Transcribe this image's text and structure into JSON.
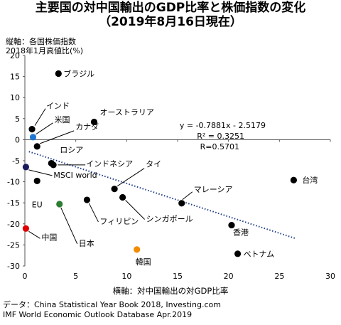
{
  "chart_data": {
    "type": "scatter",
    "title": "主要国の対中国輸出のGDP比率と株価指数の変化",
    "subtitle": "（2019年8月16日現在）",
    "ylabel_line1": "縦軸：各国株価指数",
    "ylabel_line2": "2018年1月高値比(%)",
    "xlabel": "横軸：対中国輸出の対GDP比率",
    "xlim": [
      0,
      30
    ],
    "ylim": [
      -30,
      20
    ],
    "xticks": [
      0,
      5,
      10,
      15,
      20,
      25,
      30
    ],
    "yticks": [
      20,
      15,
      10,
      5,
      0,
      -5,
      -10,
      -15,
      -20,
      -25,
      -30
    ],
    "grid": false,
    "trendline": {
      "equation": "y = -0.7881x - 2.5179",
      "r2": "R² = 0.3251",
      "r": "R=0.5701",
      "slope": -0.7881,
      "intercept": -2.5179,
      "x_range": [
        0.4,
        26.5
      ],
      "color": "#1f3c88"
    },
    "points": [
      {
        "name": "ブラジル",
        "x": 3.3,
        "y": 15.7,
        "color": "#000000"
      },
      {
        "name": "インド",
        "x": 0.7,
        "y": 2.5,
        "color": "#000000"
      },
      {
        "name": "米国",
        "x": 0.8,
        "y": 0.6,
        "color": "#1f77d4"
      },
      {
        "name": "オーストラリア",
        "x": 6.8,
        "y": 4.2,
        "color": "#000000"
      },
      {
        "name": "カナダ",
        "x": 1.2,
        "y": -1.6,
        "color": "#000000"
      },
      {
        "name": "ロシア",
        "x": 2.6,
        "y": -5.6,
        "color": "#000000"
      },
      {
        "name": "インドネシア",
        "x": 2.8,
        "y": -6.0,
        "color": "#000000"
      },
      {
        "name": "MSCI world",
        "x": 0.1,
        "y": -6.5,
        "color": "#1a1a5e"
      },
      {
        "name": "EU",
        "x": 1.2,
        "y": -9.8,
        "color": "#000000"
      },
      {
        "name": "タイ",
        "x": 8.8,
        "y": -11.7,
        "color": "#000000"
      },
      {
        "name": "シンガポール",
        "x": 9.6,
        "y": -13.7,
        "color": "#000000"
      },
      {
        "name": "日本",
        "x": 3.4,
        "y": -15.3,
        "color": "#2e7d32"
      },
      {
        "name": "フィリピン",
        "x": 6.1,
        "y": -14.3,
        "color": "#000000"
      },
      {
        "name": "マレーシア",
        "x": 15.4,
        "y": -15.1,
        "color": "#000000"
      },
      {
        "name": "台湾",
        "x": 26.4,
        "y": -9.6,
        "color": "#000000"
      },
      {
        "name": "香港",
        "x": 20.3,
        "y": -20.3,
        "color": "#000000"
      },
      {
        "name": "中国",
        "x": 0.1,
        "y": -21.1,
        "color": "#e00000"
      },
      {
        "name": "韓国",
        "x": 11.0,
        "y": -26.1,
        "color": "#f28c00"
      },
      {
        "name": "ベトナム",
        "x": 20.9,
        "y": -27.1,
        "color": "#000000"
      }
    ]
  },
  "source": {
    "line1": "データ：China Statistical Year Book 2018, Investing.com",
    "line2": "IMF World Economic Outlook Database Apr.2019"
  }
}
